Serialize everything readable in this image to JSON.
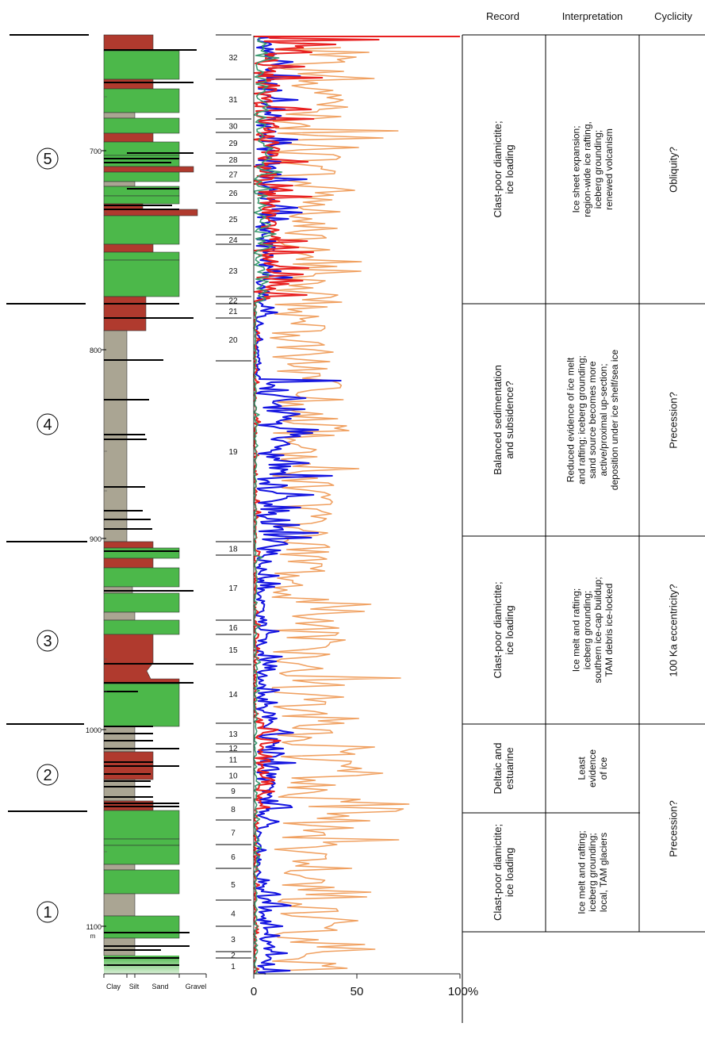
{
  "header": {
    "record": "Record",
    "interpretation": "Interpretation",
    "cyclicity": "Cyclicity"
  },
  "depth_axis": {
    "ticks": [
      "700",
      "800",
      "900",
      "1000",
      "1100"
    ],
    "unit": "m"
  },
  "grain_axis": [
    "Clay",
    "Silt",
    "Sand",
    "Gravel"
  ],
  "percent_axis": {
    "ticks": [
      "0",
      "50",
      "100%"
    ]
  },
  "colors": {
    "diamictite": "#b03a2e",
    "sand": "#4cb84a",
    "mud": "#aaa593",
    "orange": "#f0a060",
    "blue": "#1515e0",
    "red": "#e82020",
    "teal": "#3a9a70"
  },
  "sequences": [
    "5",
    "4",
    "3",
    "2",
    "1"
  ],
  "cycles": [
    "32",
    "31",
    "30",
    "29",
    "28",
    "27",
    "26",
    "25",
    "24",
    "23",
    "22",
    "21",
    "20",
    "19",
    "18",
    "17",
    "16",
    "15",
    "14",
    "13",
    "12",
    "11",
    "10",
    "9",
    "8",
    "7",
    "6",
    "5",
    "4",
    "3",
    "2",
    "1"
  ],
  "intervals": [
    {
      "record": [
        "Clast-poor diamictite;",
        "ice loading"
      ],
      "interpretation": [
        "Ice sheet expansion;",
        "region-wide ice rafting,",
        "iceberg grounding;",
        "renewed volcanism"
      ],
      "cyclicity": [
        "Obliquity?"
      ]
    },
    {
      "record": [
        "Balanced sedimentation",
        "and subsidence?"
      ],
      "interpretation": [
        "Reduced evidence of ice melt",
        "and rafting; iceberg grounding;",
        "sand source becomes more",
        "active/proximal up-section;",
        "deposition under ice shelf/sea ice"
      ],
      "cyclicity": [
        "Precession?"
      ]
    },
    {
      "record": [
        "Clast-poor diamictite;",
        "ice loading"
      ],
      "interpretation": [
        "Ice melt and rafting;",
        "iceberg grounding;",
        "southern ice-cap buildup;",
        "TAM debris ice-locked"
      ],
      "cyclicity": [
        "100 Ka eccentricity?"
      ]
    },
    {
      "record": [
        "Deltaic and",
        "estuarine"
      ],
      "interpretation": [
        "Least",
        "evidence",
        "of ice"
      ],
      "cyclicity": []
    },
    {
      "record": [
        "Clast-poor diamictite;",
        "ice loading"
      ],
      "interpretation": [
        "Ice melt and rafting;",
        "iceberg grounding;",
        "local, TAM glaciers"
      ],
      "cyclicity": [
        "Precession?"
      ]
    }
  ]
}
